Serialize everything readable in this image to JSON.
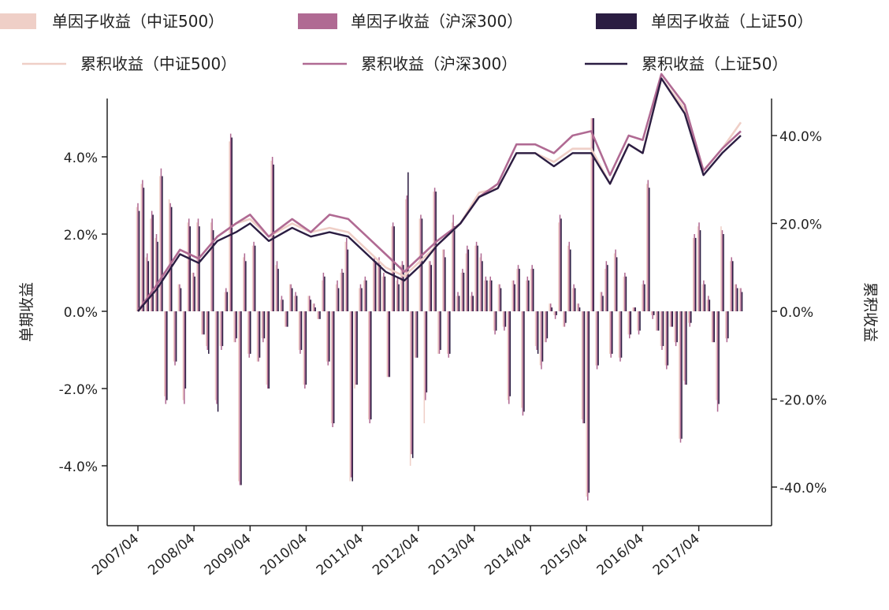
{
  "chart_data": {
    "type": "bar",
    "title": "",
    "ylabel_left": "单期收益",
    "ylabel_right": "累积收益",
    "ylim_left": [
      -5.5,
      5.5
    ],
    "ylim_right": [
      -49.4,
      49.4
    ],
    "yticks_left": [
      "4.0%",
      "2.0%",
      "0.0%",
      "-2.0%",
      "-4.0%"
    ],
    "yticks_right": [
      "40.0%",
      "20.0%",
      "0.0%",
      "-20.0%",
      "-40.0%"
    ],
    "xticks": [
      "2007/04",
      "2008/04",
      "2009/04",
      "2010/04",
      "2011/04",
      "2012/04",
      "2013/04",
      "2014/04",
      "2015/04",
      "2016/04",
      "2017/04"
    ],
    "x_start": "2007/04",
    "x_end": "2018/01",
    "legend_position": "top",
    "grid": false,
    "series": [
      {
        "name": "单因子收益（中证500）",
        "kind": "bar",
        "color": "#efcfc7",
        "values": [
          2.7,
          3.3,
          1.4,
          2.4,
          1.9,
          3.5,
          -2.2,
          2.9,
          -1.3,
          0.7,
          -2.3,
          2.3,
          1.0,
          2.3,
          -0.6,
          -0.9,
          2.3,
          -2.3,
          -0.9,
          0.5,
          4.4,
          -0.8,
          -4.4,
          1.4,
          -1.1,
          1.7,
          -1.3,
          -0.7,
          -1.9,
          3.9,
          1.2,
          0.3,
          -0.4,
          0.7,
          0.4,
          -1.0,
          -1.9,
          0.4,
          0.2,
          -0.2,
          0.8,
          -1.3,
          -2.9,
          0.7,
          1.0,
          1.8,
          -4.4,
          -2.0,
          0.6,
          0.8,
          -2.8,
          1.3,
          1.3,
          0.9,
          -1.7,
          2.2,
          0.8,
          1.2,
          2.9,
          -4.0,
          -1.2,
          2.4,
          -2.9,
          1.3,
          3.1,
          -1.1,
          1.6,
          -1.1,
          2.3,
          0.4,
          1.0,
          1.5,
          0.4,
          1.7,
          1.4,
          0.8,
          0.8,
          -0.5,
          0.7,
          -0.4,
          -2.3,
          0.8,
          1.1,
          -2.5,
          0.8,
          1.1,
          -0.9,
          -1.4,
          -0.8,
          0.2,
          -0.1,
          2.3,
          -0.4,
          1.7,
          0.6,
          0.2,
          -2.8,
          -4.8,
          5.0,
          -1.4,
          0.5,
          1.1,
          -1.1,
          1.5,
          -1.2,
          0.9,
          -0.6,
          0.1,
          -0.5,
          0.7,
          3.3,
          -0.1,
          -0.5,
          -0.9,
          -1.4,
          -0.4,
          -0.8,
          -3.3,
          -1.8,
          -0.3,
          1.9,
          2.2,
          0.7,
          0.3,
          -0.8,
          -2.3,
          2.2,
          -0.7,
          1.3,
          0.7,
          0.6
        ]
      },
      {
        "name": "单因子收益（沪深300）",
        "kind": "bar",
        "color": "#b06a93",
        "values": [
          2.8,
          3.4,
          1.5,
          2.6,
          2.0,
          3.7,
          -2.4,
          2.8,
          -1.4,
          0.7,
          -2.4,
          2.4,
          1.0,
          2.4,
          -0.6,
          -1.0,
          2.4,
          -2.4,
          -1.0,
          0.6,
          4.6,
          -0.8,
          -4.5,
          1.5,
          -1.2,
          1.8,
          -1.3,
          -0.8,
          -2.0,
          4.0,
          1.3,
          0.4,
          -0.4,
          0.7,
          0.5,
          -1.1,
          -2.0,
          0.4,
          0.2,
          -0.2,
          1.0,
          -1.4,
          -3.0,
          0.8,
          1.1,
          1.9,
          -4.3,
          -1.9,
          0.7,
          0.9,
          -2.9,
          1.4,
          1.4,
          1.0,
          -1.7,
          2.3,
          0.9,
          1.3,
          3.0,
          -3.7,
          -1.2,
          2.5,
          -2.3,
          1.3,
          3.2,
          -1.1,
          1.6,
          -1.2,
          2.5,
          0.5,
          1.1,
          1.7,
          0.5,
          1.8,
          1.5,
          0.9,
          0.9,
          -0.6,
          0.7,
          -0.5,
          -2.4,
          0.8,
          1.2,
          -2.7,
          0.9,
          1.2,
          -1.0,
          -1.5,
          -0.8,
          0.2,
          -0.2,
          2.5,
          -0.4,
          1.8,
          0.7,
          0.2,
          -2.9,
          -4.9,
          5.0,
          -1.5,
          0.5,
          1.3,
          -1.2,
          1.6,
          -1.3,
          1.0,
          -0.7,
          0.1,
          -0.6,
          0.8,
          3.4,
          -0.2,
          -0.5,
          -1.0,
          -1.5,
          -0.4,
          -0.9,
          -3.4,
          -1.9,
          -0.4,
          2.0,
          2.3,
          0.8,
          0.4,
          -0.8,
          -2.6,
          2.1,
          -0.8,
          1.4,
          0.7,
          0.6
        ]
      },
      {
        "name": "单因子收益（上证50）",
        "kind": "bar",
        "color": "#2b1d42",
        "values": [
          2.6,
          3.2,
          1.3,
          2.5,
          1.8,
          3.5,
          -2.3,
          2.7,
          -1.3,
          0.6,
          -2.0,
          2.2,
          0.9,
          2.2,
          -0.6,
          -1.1,
          2.1,
          -2.6,
          -0.9,
          0.5,
          4.5,
          -0.7,
          -4.5,
          1.3,
          -1.1,
          1.7,
          -1.2,
          -0.7,
          -2.0,
          3.8,
          1.1,
          0.3,
          -0.4,
          0.6,
          0.4,
          -1.0,
          -1.9,
          0.3,
          0.1,
          -0.2,
          0.9,
          -1.3,
          -2.9,
          0.6,
          1.0,
          1.6,
          -4.4,
          -1.9,
          0.6,
          0.8,
          -2.8,
          1.3,
          1.2,
          0.9,
          -1.7,
          2.2,
          0.7,
          1.2,
          3.6,
          -3.8,
          -1.2,
          2.4,
          -2.1,
          1.2,
          3.1,
          -1.0,
          1.4,
          -1.1,
          2.2,
          0.4,
          1.0,
          1.6,
          0.4,
          1.7,
          1.3,
          0.8,
          0.8,
          -0.5,
          0.6,
          -0.4,
          -2.2,
          0.7,
          1.1,
          -2.6,
          0.8,
          1.1,
          -1.1,
          -1.3,
          -0.7,
          0.1,
          -0.1,
          2.4,
          -0.3,
          1.6,
          0.6,
          0.1,
          -2.9,
          -4.7,
          5.0,
          -1.4,
          0.4,
          1.2,
          -1.1,
          1.4,
          -1.2,
          0.9,
          -0.6,
          0.1,
          -0.5,
          0.7,
          3.2,
          -0.1,
          -0.5,
          -0.9,
          -1.4,
          -0.4,
          -0.8,
          -3.3,
          -1.9,
          -0.3,
          1.9,
          2.1,
          0.7,
          0.3,
          -0.8,
          -2.4,
          2.0,
          -0.7,
          1.3,
          0.6,
          0.5
        ]
      },
      {
        "name": "累积收益（中证500）",
        "kind": "line",
        "color": "#efcfc7",
        "x": [
          "2007/04",
          "2007/08",
          "2008/01",
          "2008/05",
          "2008/09",
          "2009/01",
          "2009/04",
          "2009/08",
          "2010/01",
          "2010/05",
          "2010/09",
          "2011/01",
          "2011/05",
          "2011/09",
          "2012/01",
          "2012/05",
          "2012/08",
          "2013/01",
          "2013/05",
          "2013/09",
          "2014/01",
          "2014/05",
          "2014/09",
          "2015/01",
          "2015/05",
          "2015/09",
          "2016/01",
          "2016/04",
          "2016/08",
          "2017/01",
          "2017/05",
          "2017/09",
          "2018/01"
        ],
        "values": [
          0,
          6,
          14,
          12,
          17,
          20,
          21,
          17,
          20,
          18,
          19,
          18,
          14,
          10,
          8,
          12,
          15,
          20,
          27,
          28,
          36,
          36,
          34,
          37,
          37,
          29,
          38,
          36,
          53,
          46,
          32,
          37,
          43
        ]
      },
      {
        "name": "累积收益（沪深300）",
        "kind": "line",
        "color": "#b06a93",
        "x": [
          "2007/04",
          "2007/08",
          "2008/01",
          "2008/05",
          "2008/09",
          "2009/01",
          "2009/04",
          "2009/08",
          "2010/01",
          "2010/05",
          "2010/09",
          "2011/01",
          "2011/05",
          "2011/09",
          "2012/01",
          "2012/05",
          "2012/08",
          "2013/01",
          "2013/05",
          "2013/09",
          "2014/01",
          "2014/05",
          "2014/09",
          "2015/01",
          "2015/05",
          "2015/09",
          "2016/01",
          "2016/04",
          "2016/08",
          "2017/01",
          "2017/05",
          "2017/09",
          "2018/01"
        ],
        "values": [
          0,
          6,
          14,
          12,
          17,
          20,
          22,
          17,
          21,
          18,
          22,
          21,
          17,
          13,
          9,
          13,
          16,
          20,
          26,
          29,
          38,
          38,
          36,
          40,
          41,
          31,
          40,
          39,
          54,
          47,
          32,
          37,
          41
        ]
      },
      {
        "name": "累积收益（上证50）",
        "kind": "line",
        "color": "#2b1d42",
        "x": [
          "2007/04",
          "2007/08",
          "2008/01",
          "2008/05",
          "2008/09",
          "2009/01",
          "2009/04",
          "2009/08",
          "2010/01",
          "2010/05",
          "2010/09",
          "2011/01",
          "2011/05",
          "2011/09",
          "2012/01",
          "2012/05",
          "2012/08",
          "2013/01",
          "2013/05",
          "2013/09",
          "2014/01",
          "2014/05",
          "2014/09",
          "2015/01",
          "2015/05",
          "2015/09",
          "2016/01",
          "2016/04",
          "2016/08",
          "2017/01",
          "2017/05",
          "2017/09",
          "2018/01"
        ],
        "values": [
          0,
          5,
          13,
          11,
          16,
          18,
          20,
          16,
          19,
          17,
          18,
          17,
          13,
          9,
          7,
          11,
          15,
          20,
          26,
          28,
          36,
          36,
          33,
          36,
          36,
          29,
          38,
          36,
          53,
          45,
          31,
          36,
          40
        ]
      }
    ]
  }
}
